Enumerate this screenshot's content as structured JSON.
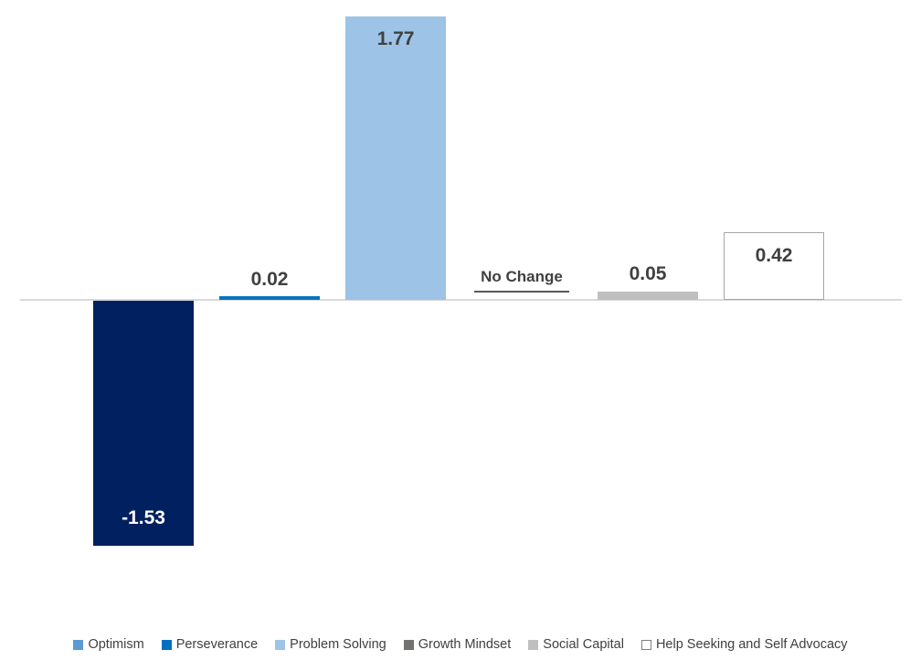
{
  "chart_data": {
    "type": "bar",
    "title": "",
    "xlabel": "",
    "ylabel": "",
    "gridlines": false,
    "y_axis_visible": false,
    "x_axis_line": true,
    "implied_ylim": [
      -1.77,
      2.0
    ],
    "categories": [
      "Optimism",
      "Perseverance",
      "Problem Solving",
      "Growth Mindset",
      "Social Capital",
      "Help Seeking and Self Advocacy"
    ],
    "series": [
      {
        "name": "Optimism",
        "value": -1.53,
        "label": "-1.53",
        "color": "#002060",
        "label_color": "#FFFFFF",
        "label_placement": "inside-end"
      },
      {
        "name": "Perseverance",
        "value": 0.02,
        "label": "0.02",
        "color": "#0B72C0",
        "label_color": "#404040",
        "label_placement": "outside-end"
      },
      {
        "name": "Problem Solving",
        "value": 1.77,
        "label": "1.77",
        "color": "#9DC3E6",
        "label_color": "#404040",
        "label_placement": "inside-end"
      },
      {
        "name": "Growth Mindset",
        "value": 0.0,
        "label": "No Change",
        "color": "#595959",
        "label_color": "#404040",
        "label_placement": "outside-end",
        "no_change": true
      },
      {
        "name": "Social Capital",
        "value": 0.05,
        "label": "0.05",
        "color": "#BFBFBF",
        "label_color": "#404040",
        "label_placement": "outside-end"
      },
      {
        "name": "Help Seeking and Self Advocacy",
        "value": 0.42,
        "label": "0.42",
        "color": "#FFFFFF",
        "border_color": "#A6A6A6",
        "label_color": "#404040",
        "label_placement": "inside-end"
      }
    ],
    "legend": {
      "position": "bottom",
      "entries": [
        {
          "label": "Optimism",
          "color": "#5B9BD5"
        },
        {
          "label": "Perseverance",
          "color": "#0070C0"
        },
        {
          "label": "Problem Solving",
          "color": "#9DC3E6"
        },
        {
          "label": "Growth Mindset",
          "color": "#767171"
        },
        {
          "label": "Social Capital",
          "color": "#BFBFBF"
        },
        {
          "label": "Help Seeking and Self Advocacy",
          "color": "#FFFFFF",
          "border": "#808080"
        }
      ]
    }
  },
  "colors": {
    "axis_line": "#D9D9D9",
    "label_text": "#404040",
    "background": "#FFFFFF"
  }
}
